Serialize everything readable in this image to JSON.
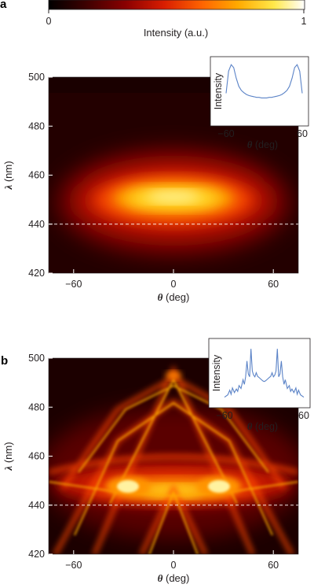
{
  "colorbar": {
    "tick_min": "0",
    "tick_max": "1",
    "label": "Intensity (a.u.)",
    "colormap": [
      "#000000",
      "#3a0000",
      "#8a0000",
      "#d81d00",
      "#ff6400",
      "#ffaa00",
      "#ffe84a",
      "#ffffff"
    ]
  },
  "dashed_line_color": "#ffffff",
  "inset_line_color": "#5b83c7",
  "chart_data": [
    {
      "type": "heatmap",
      "panel_label": "a",
      "x_symbol": "θ",
      "x_unit": "(deg)",
      "y_symbol": "λ",
      "y_unit": "(nm)",
      "xlim": [
        -75,
        75
      ],
      "ylim": [
        420,
        500
      ],
      "xticks": [
        -60,
        0,
        60
      ],
      "yticks": [
        420,
        440,
        460,
        480,
        500
      ],
      "xtick_labels": [
        "−60",
        "0",
        "60"
      ],
      "ytick_labels": [
        "420",
        "440",
        "460",
        "480",
        "500"
      ],
      "dashed_line_y": 440,
      "description_values": {
        "emission_band_center_nm": [
          452,
          448
        ],
        "emission_band_angle_range_deg": [
          -45,
          45
        ]
      },
      "inset": {
        "type": "line",
        "ylabel": "Intensity",
        "x_symbol": "θ",
        "x_unit": "(deg)",
        "xlim": [
          -60,
          60
        ],
        "xtick_labels": [
          "−60",
          "60"
        ],
        "x": [
          -60,
          -56,
          -52,
          -48,
          -44,
          -40,
          -36,
          -32,
          -28,
          -24,
          -20,
          -16,
          -12,
          -8,
          -4,
          0,
          4,
          8,
          12,
          16,
          20,
          24,
          28,
          32,
          36,
          40,
          44,
          48,
          52,
          56,
          60
        ],
        "y": [
          0.48,
          0.86,
          0.97,
          0.92,
          0.74,
          0.6,
          0.53,
          0.49,
          0.46,
          0.44,
          0.43,
          0.42,
          0.41,
          0.41,
          0.4,
          0.4,
          0.4,
          0.41,
          0.41,
          0.42,
          0.43,
          0.44,
          0.46,
          0.49,
          0.53,
          0.6,
          0.74,
          0.92,
          0.97,
          0.86,
          0.48
        ]
      }
    },
    {
      "type": "heatmap",
      "panel_label": "b",
      "x_symbol": "θ",
      "x_unit": "(deg)",
      "y_symbol": "λ",
      "y_unit": "(nm)",
      "xlim": [
        -75,
        75
      ],
      "ylim": [
        420,
        500
      ],
      "xticks": [
        -60,
        0,
        60
      ],
      "yticks": [
        420,
        440,
        460,
        480,
        500
      ],
      "xtick_labels": [
        "−60",
        "0",
        "60"
      ],
      "ytick_labels": [
        "420",
        "440",
        "460",
        "480",
        "500"
      ],
      "dashed_line_y": 440,
      "description_values": {
        "hot_spots_deg_nm": [
          [
            -30,
            446
          ],
          [
            30,
            446
          ]
        ]
      },
      "inset": {
        "type": "line",
        "ylabel": "Intensity",
        "x_symbol": "θ",
        "x_unit": "(deg)",
        "xlim": [
          -60,
          60
        ],
        "xtick_labels": [
          "−60",
          "60"
        ],
        "x": [
          -60,
          -55,
          -52,
          -50,
          -48,
          -45,
          -42,
          -40,
          -38,
          -35,
          -32,
          -30,
          -28,
          -26,
          -24,
          -22,
          -20,
          -18,
          -16,
          -14,
          -12,
          -10,
          -8,
          -6,
          -4,
          -2,
          0,
          2,
          4,
          6,
          8,
          10,
          12,
          14,
          16,
          18,
          20,
          22,
          24,
          26,
          28,
          30,
          32,
          35,
          38,
          40,
          42,
          45,
          48,
          50,
          52,
          55,
          60
        ],
        "y": [
          0.1,
          0.14,
          0.22,
          0.15,
          0.26,
          0.18,
          0.24,
          0.2,
          0.3,
          0.25,
          0.4,
          0.32,
          0.45,
          0.72,
          0.5,
          0.45,
          0.93,
          0.55,
          0.48,
          0.45,
          0.52,
          0.46,
          0.44,
          0.42,
          0.4,
          0.38,
          0.37,
          0.38,
          0.4,
          0.42,
          0.44,
          0.46,
          0.52,
          0.45,
          0.48,
          0.55,
          0.93,
          0.45,
          0.5,
          0.72,
          0.45,
          0.32,
          0.4,
          0.25,
          0.3,
          0.2,
          0.24,
          0.18,
          0.26,
          0.15,
          0.22,
          0.14,
          0.1
        ]
      }
    }
  ]
}
